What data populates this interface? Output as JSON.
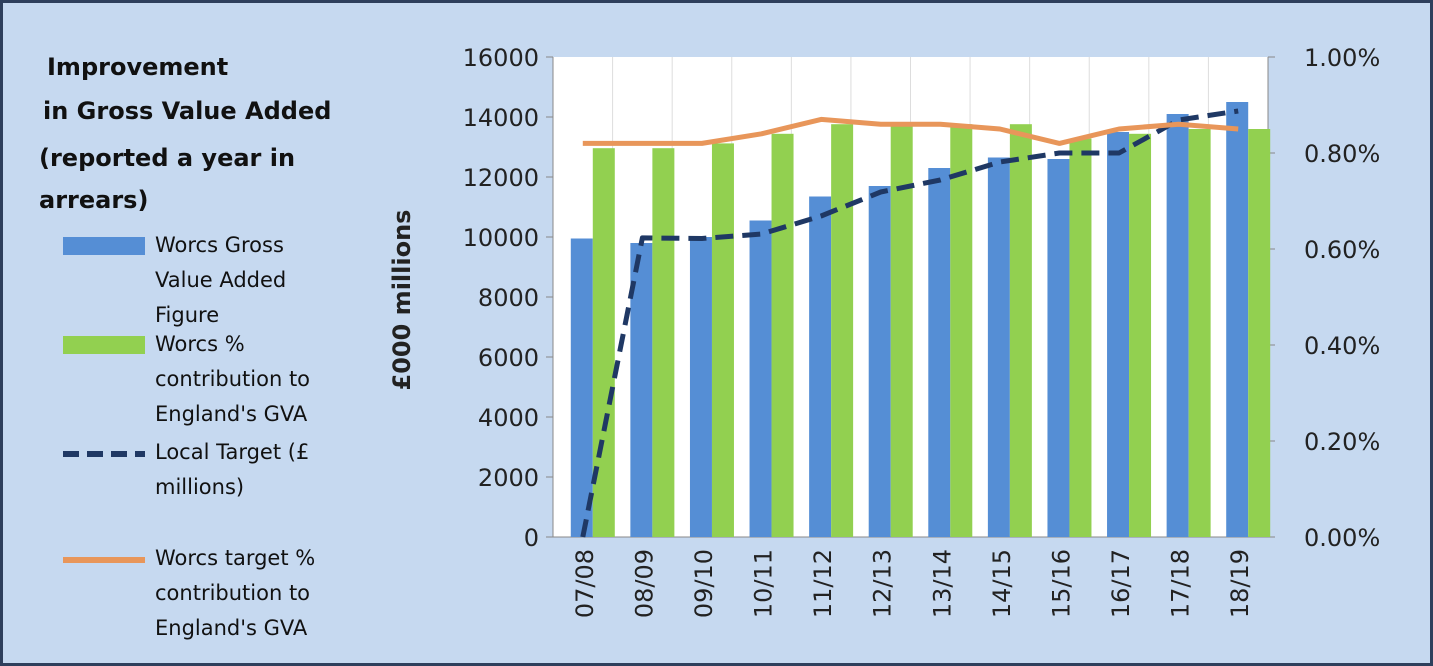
{
  "chart_data": {
    "type": "bar-line",
    "title": [
      "Improvement",
      "in Gross Value Added"
    ],
    "subtitle": "(reported a year in arrears)",
    "y_label": "£000 millions",
    "categories": [
      "07/08",
      "08/09",
      "09/10",
      "10/11",
      "11/12",
      "12/13",
      "13/14",
      "14/15",
      "15/16",
      "16/17",
      "17/18",
      "18/19"
    ],
    "series": [
      {
        "name": "Worcs Gross Value Added Figure",
        "type": "bar",
        "axis": "y",
        "color": "#558ed5",
        "values": [
          9950,
          9800,
          10000,
          10550,
          11350,
          11700,
          12300,
          12650,
          12600,
          13500,
          14100,
          14500
        ]
      },
      {
        "name": "Worcs % contribution to England's GVA",
        "type": "bar",
        "axis": "y2",
        "color": "#92d050",
        "values": [
          0.81,
          0.81,
          0.82,
          0.84,
          0.86,
          0.86,
          0.86,
          0.86,
          0.83,
          0.84,
          0.85,
          0.85
        ]
      },
      {
        "name": "Local Target (£ millions)",
        "type": "line",
        "dashed": true,
        "axis": "y",
        "color": "#1f3864",
        "values": [
          0,
          9970,
          9950,
          10100,
          10700,
          11500,
          11900,
          12500,
          12800,
          12800,
          13900,
          14200
        ]
      },
      {
        "name": "Worcs target % contribution to England's GVA",
        "type": "line",
        "dashed": false,
        "axis": "y2",
        "color": "#e8965a",
        "values": [
          0.82,
          0.82,
          0.82,
          0.84,
          0.87,
          0.86,
          0.86,
          0.85,
          0.82,
          0.85,
          0.86,
          0.85
        ]
      }
    ],
    "ylim": [
      0,
      16000
    ],
    "yticks": [
      0,
      2000,
      4000,
      6000,
      8000,
      10000,
      12000,
      14000,
      16000
    ],
    "y2lim": [
      0,
      1
    ],
    "y2ticks": [
      {
        "value": 0,
        "label": "0.00%"
      },
      {
        "value": 0.2,
        "label": "0.20%"
      },
      {
        "value": 0.4,
        "label": "0.40%"
      },
      {
        "value": 0.6,
        "label": "0.60%"
      },
      {
        "value": 0.8,
        "label": "0.80%"
      },
      {
        "value": 1,
        "label": "1.00%"
      }
    ]
  }
}
